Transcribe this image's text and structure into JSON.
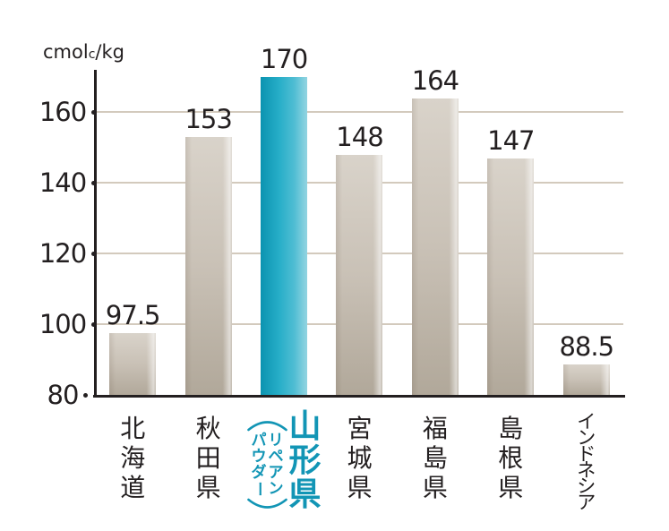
{
  "unit": {
    "main": "cmol",
    "sub": "c",
    "rest": "/kg"
  },
  "chart_data": {
    "type": "bar",
    "title": "",
    "xlabel": "",
    "ylabel": "cmolc/kg",
    "categories": [
      "北海道",
      "秋田県",
      "山形県",
      "宮城県",
      "福島県",
      "島根県",
      "インドネシア"
    ],
    "values": [
      97.5,
      153,
      170,
      148,
      164,
      147,
      88.5
    ],
    "value_labels": [
      "97.5",
      "153",
      "170",
      "148",
      "164",
      "147",
      "88.5"
    ],
    "yticks": [
      80,
      100,
      120,
      140,
      160
    ],
    "ylim": [
      80,
      172
    ],
    "grid": true,
    "legend": false,
    "highlight_index": 2,
    "highlight_label": "山形県",
    "highlight_sub_label_lines": [
      "リペアン",
      "パウダー"
    ],
    "colors": {
      "background": "#ffffff",
      "axis": "#231f20",
      "grid": "#d3cabd",
      "bar_top": "#d9d3ca",
      "bar_mid": "#c9c1b6",
      "bar_bottom": "#b1a89a",
      "highlight_left": "#0b93b0",
      "highlight_mid": "#27aec8",
      "highlight_right": "#8fd3e0",
      "accent_text": "#1295b5"
    }
  }
}
